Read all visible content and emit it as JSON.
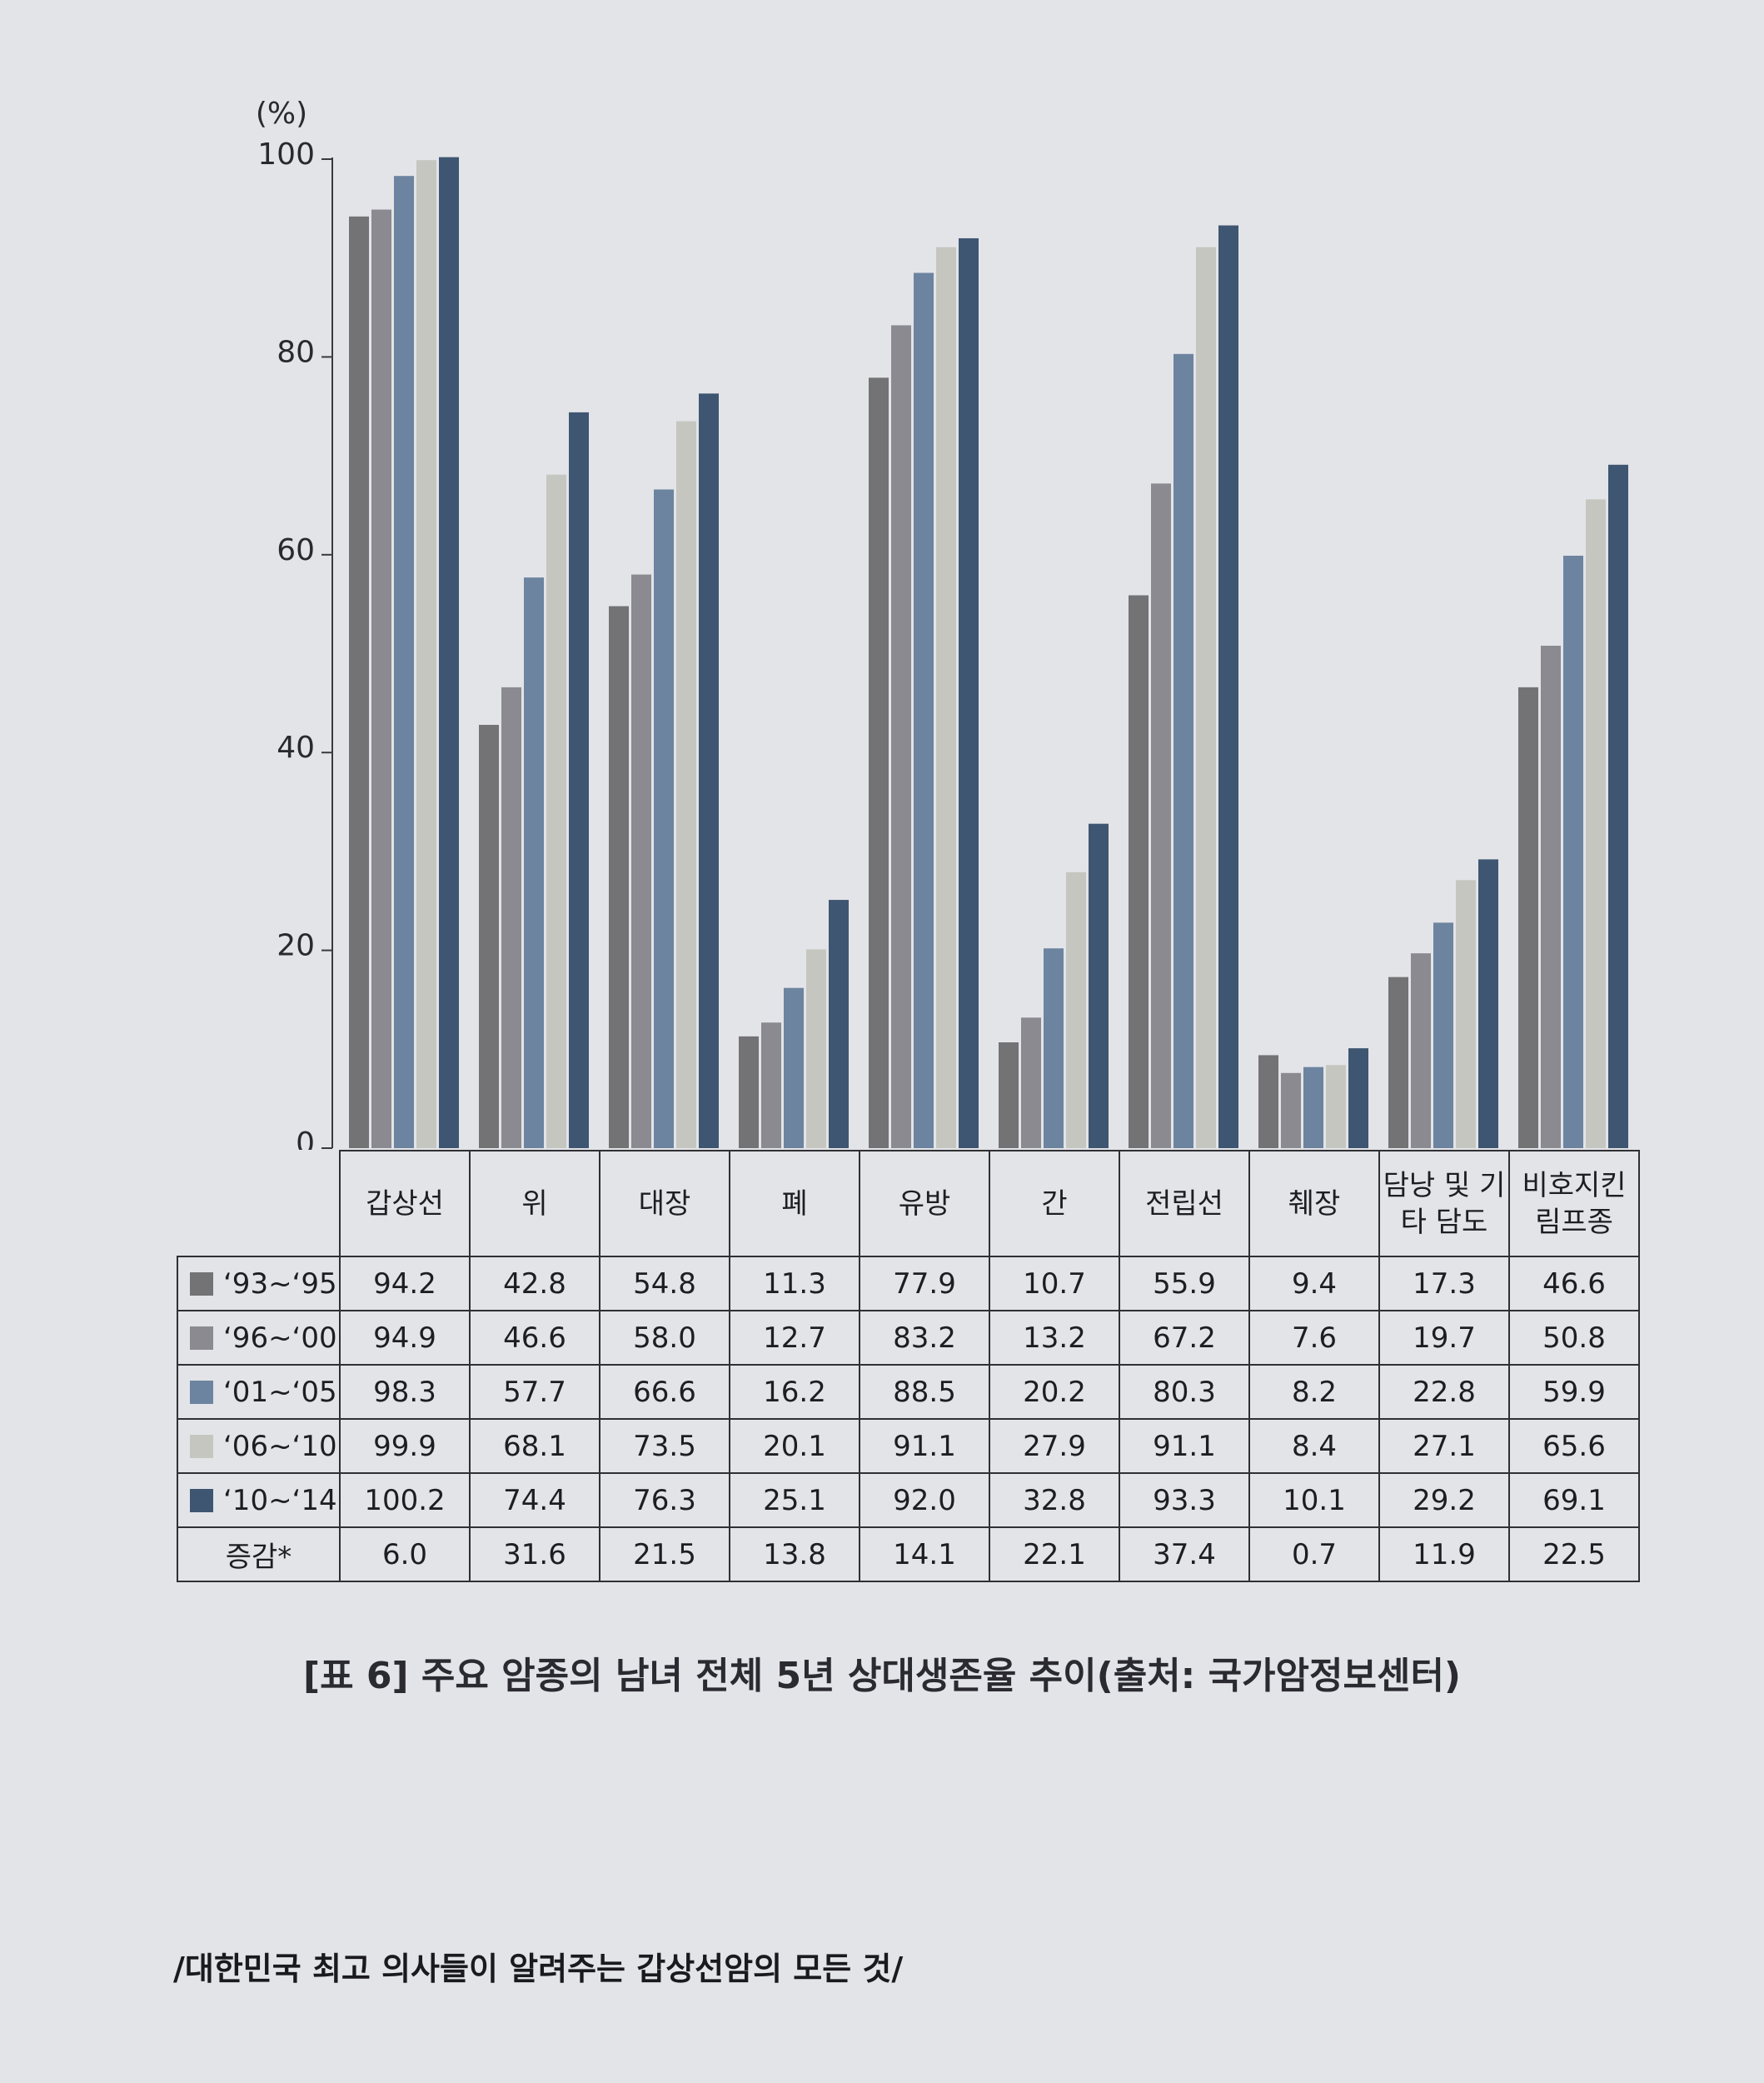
{
  "chart_data": {
    "type": "bar",
    "y_label": "(%)",
    "categories": [
      "갑상선",
      "위",
      "대장",
      "폐",
      "유방",
      "간",
      "전립선",
      "췌장",
      "담낭 및 기타 담도",
      "비호지킨 림프종"
    ],
    "series": [
      {
        "name": "‘93~‘95",
        "color": "#737376",
        "values": [
          94.2,
          42.8,
          54.8,
          11.3,
          77.9,
          10.7,
          55.9,
          9.4,
          17.3,
          46.6
        ],
        "value_labels": [
          "94.2",
          "42.8",
          "54.8",
          "11.3",
          "77.9",
          "10.7",
          "55.9",
          "9.4",
          "17.3",
          "46.6"
        ]
      },
      {
        "name": "‘96~‘00",
        "color": "#8a8a90",
        "values": [
          94.9,
          46.6,
          58,
          12.7,
          83.2,
          13.2,
          67.2,
          7.6,
          19.7,
          50.8
        ],
        "value_labels": [
          "94.9",
          "46.6",
          "58.0",
          "12.7",
          "83.2",
          "13.2",
          "67.2",
          "7.6",
          "19.7",
          "50.8"
        ]
      },
      {
        "name": "‘01~‘05",
        "color": "#6d84a0",
        "values": [
          98.3,
          57.7,
          66.6,
          16.2,
          88.5,
          20.2,
          80.3,
          8.2,
          22.8,
          59.9
        ],
        "value_labels": [
          "98.3",
          "57.7",
          "66.6",
          "16.2",
          "88.5",
          "20.2",
          "80.3",
          "8.2",
          "22.8",
          "59.9"
        ]
      },
      {
        "name": "‘06~‘10",
        "color": "#c5c6bf",
        "values": [
          99.9,
          68.1,
          73.5,
          20.1,
          91.1,
          27.9,
          91.1,
          8.4,
          27.1,
          65.6
        ],
        "value_labels": [
          "99.9",
          "68.1",
          "73.5",
          "20.1",
          "91.1",
          "27.9",
          "91.1",
          "8.4",
          "27.1",
          "65.6"
        ]
      },
      {
        "name": "‘10~‘14",
        "color": "#3e5671",
        "values": [
          100.2,
          74.4,
          76.3,
          25.1,
          92,
          32.8,
          93.3,
          10.1,
          29.2,
          69.1
        ],
        "value_labels": [
          "100.2",
          "74.4",
          "76.3",
          "25.1",
          "92.0",
          "32.8",
          "93.3",
          "10.1",
          "29.2",
          "69.1"
        ]
      }
    ],
    "change": {
      "name": "증감*",
      "values": [
        6,
        31.6,
        21.5,
        13.8,
        14.1,
        22.1,
        37.4,
        0.7,
        11.9,
        22.5
      ],
      "value_labels": [
        "6.0",
        "31.6",
        "21.5",
        "13.8",
        "14.1",
        "22.1",
        "37.4",
        "0.7",
        "11.9",
        "22.5"
      ]
    },
    "ylim": [
      0,
      100
    ],
    "yticks": [
      0,
      20,
      40,
      60,
      80,
      100
    ],
    "caption": "[표 6] 주요 암종의 남녀 전체 5년 상대생존율 추이(출처: 국가암정보센터)"
  },
  "footer": "/대한민국 최고 의사들이 알려주는 갑상선암의 모든 것/"
}
